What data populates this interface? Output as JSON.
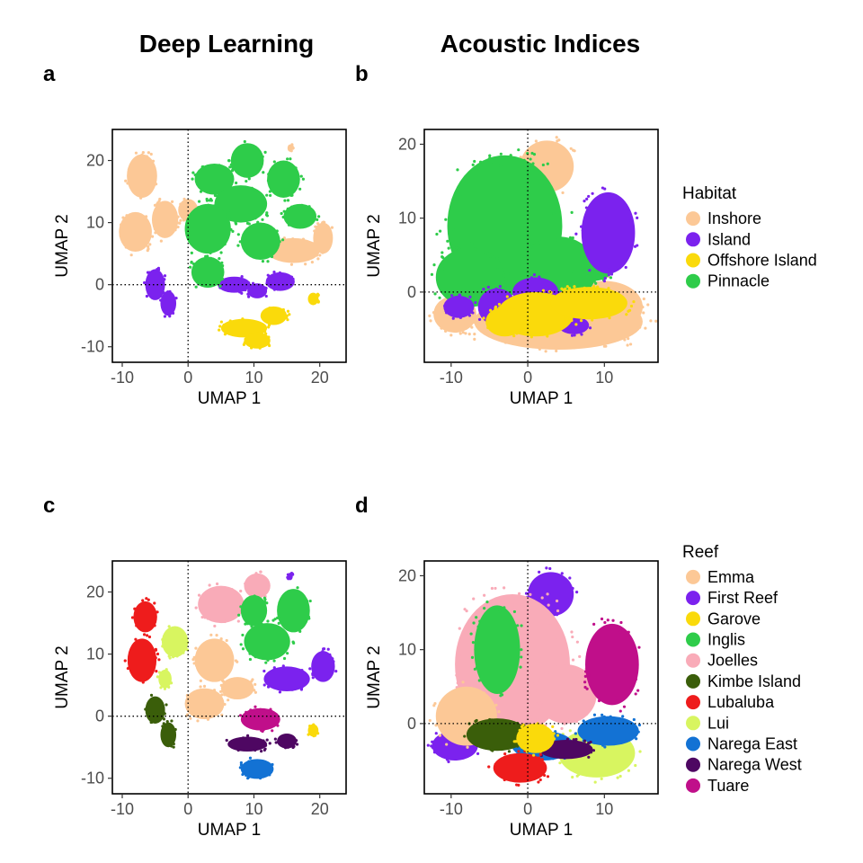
{
  "column_titles": [
    "Deep Learning",
    "Acoustic Indices"
  ],
  "palettes": {
    "habitat": {
      "Inshore": "#fcc896",
      "Island": "#7b22ee",
      "Offshore Island": "#fada0b",
      "Pinnacle": "#2ecc4a"
    },
    "reef": {
      "Emma": "#fcc896",
      "First Reef": "#7b22ee",
      "Garove": "#fada0b",
      "Inglis": "#2ecc4a",
      "Joelles": "#f9abb8",
      "Kimbe Island": "#3a5e0a",
      "Lubaluba": "#ee1c1c",
      "Lui": "#d8f560",
      "Narega East": "#1372d4",
      "Narega West": "#4e0762",
      "Tuare": "#c00f8a"
    }
  },
  "chart_data": [
    {
      "panel": "a",
      "type": "scatter",
      "xlabel": "UMAP 1",
      "ylabel": "UMAP 2",
      "xlim": [
        -11.5,
        24
      ],
      "ylim": [
        -12.5,
        25
      ],
      "xticks": [
        -10,
        0,
        10,
        20
      ],
      "yticks": [
        -10,
        0,
        10,
        20
      ],
      "reference_lines": {
        "x": 0,
        "y": 0
      },
      "legend": null,
      "clusters": [
        {
          "group": "Inshore",
          "x": -7,
          "y": 17.5,
          "rx": 2.3,
          "ry": 3.5
        },
        {
          "group": "Inshore",
          "x": -8,
          "y": 8.5,
          "rx": 2.5,
          "ry": 3.2
        },
        {
          "group": "Inshore",
          "x": -3.5,
          "y": 10.5,
          "rx": 2,
          "ry": 3
        },
        {
          "group": "Inshore",
          "x": 0,
          "y": 12,
          "rx": 1.5,
          "ry": 1.8
        },
        {
          "group": "Inshore",
          "x": 16,
          "y": 5.5,
          "rx": 4,
          "ry": 2
        },
        {
          "group": "Inshore",
          "x": 20.5,
          "y": 7.5,
          "rx": 1.5,
          "ry": 2.5
        },
        {
          "group": "Inshore",
          "x": 15.5,
          "y": 22,
          "rx": 0.4,
          "ry": 0.6
        },
        {
          "group": "Island",
          "x": -5,
          "y": 0,
          "rx": 1.5,
          "ry": 2.5
        },
        {
          "group": "Island",
          "x": -3,
          "y": -3,
          "rx": 1.2,
          "ry": 2
        },
        {
          "group": "Island",
          "x": 7,
          "y": 0,
          "rx": 2.5,
          "ry": 1.3
        },
        {
          "group": "Island",
          "x": 10.5,
          "y": -1,
          "rx": 1.5,
          "ry": 1.2
        },
        {
          "group": "Island",
          "x": 14,
          "y": 0.5,
          "rx": 2.2,
          "ry": 1.5
        },
        {
          "group": "Offshore Island",
          "x": 13,
          "y": -5,
          "rx": 2,
          "ry": 1.5
        },
        {
          "group": "Offshore Island",
          "x": 8.5,
          "y": -7,
          "rx": 3.5,
          "ry": 1.5
        },
        {
          "group": "Offshore Island",
          "x": 10.5,
          "y": -9,
          "rx": 2,
          "ry": 1.3
        },
        {
          "group": "Offshore Island",
          "x": 19,
          "y": -2.3,
          "rx": 0.8,
          "ry": 1
        },
        {
          "group": "Pinnacle",
          "x": 9,
          "y": 20,
          "rx": 2.5,
          "ry": 2.8
        },
        {
          "group": "Pinnacle",
          "x": 14.5,
          "y": 17,
          "rx": 2.5,
          "ry": 3
        },
        {
          "group": "Pinnacle",
          "x": 4,
          "y": 17,
          "rx": 3,
          "ry": 2.5
        },
        {
          "group": "Pinnacle",
          "x": 8,
          "y": 13,
          "rx": 4,
          "ry": 3
        },
        {
          "group": "Pinnacle",
          "x": 3,
          "y": 9,
          "rx": 3.5,
          "ry": 4
        },
        {
          "group": "Pinnacle",
          "x": 11,
          "y": 7,
          "rx": 3,
          "ry": 3
        },
        {
          "group": "Pinnacle",
          "x": 3,
          "y": 2,
          "rx": 2.5,
          "ry": 2.5
        },
        {
          "group": "Pinnacle",
          "x": 17,
          "y": 11,
          "rx": 2.5,
          "ry": 2
        }
      ]
    },
    {
      "panel": "b",
      "type": "scatter",
      "xlabel": "UMAP 1",
      "ylabel": "UMAP 2",
      "xlim": [
        -13.5,
        17
      ],
      "ylim": [
        -9.5,
        22
      ],
      "xticks": [
        -10,
        0,
        10
      ],
      "yticks": [
        0,
        10,
        20
      ],
      "reference_lines": {
        "x": 0,
        "y": 0
      },
      "legend": {
        "title": "Habitat",
        "entries": [
          "Inshore",
          "Island",
          "Offshore Island",
          "Pinnacle"
        ],
        "position": "right"
      },
      "clusters": [
        {
          "group": "Inshore",
          "x": 2.5,
          "y": 17,
          "rx": 3.5,
          "ry": 3.5
        },
        {
          "group": "Inshore",
          "x": -9.5,
          "y": -3,
          "rx": 2.8,
          "ry": 2.5
        },
        {
          "group": "Inshore",
          "x": 4,
          "y": -4,
          "rx": 11,
          "ry": 3.8
        },
        {
          "group": "Inshore",
          "x": 10,
          "y": -2,
          "rx": 5,
          "ry": 3.5
        },
        {
          "group": "Pinnacle",
          "x": -3,
          "y": 9,
          "rx": 7.5,
          "ry": 9.5
        },
        {
          "group": "Pinnacle",
          "x": -7.5,
          "y": 2,
          "rx": 4.5,
          "ry": 4
        },
        {
          "group": "Pinnacle",
          "x": 4,
          "y": 3,
          "rx": 5,
          "ry": 4.5
        },
        {
          "group": "Pinnacle",
          "x": 8.5,
          "y": 3,
          "rx": 2.5,
          "ry": 1.5
        },
        {
          "group": "Island",
          "x": 10.5,
          "y": 8,
          "rx": 3.5,
          "ry": 5.5
        },
        {
          "group": "Island",
          "x": -9,
          "y": -2,
          "rx": 2,
          "ry": 1.5
        },
        {
          "group": "Island",
          "x": -4,
          "y": -2,
          "rx": 2.5,
          "ry": 2.5
        },
        {
          "group": "Island",
          "x": 1,
          "y": 0,
          "rx": 3,
          "ry": 2
        },
        {
          "group": "Island",
          "x": 6,
          "y": -4.5,
          "rx": 2,
          "ry": 1.2
        },
        {
          "group": "Offshore Island",
          "x": 1,
          "y": -3,
          "rx": 5,
          "ry": 3
        },
        {
          "group": "Offshore Island",
          "x": 8,
          "y": -1.5,
          "rx": 5,
          "ry": 2.2
        },
        {
          "group": "Offshore Island",
          "x": -3,
          "y": -4,
          "rx": 2.5,
          "ry": 2
        }
      ]
    },
    {
      "panel": "c",
      "type": "scatter",
      "xlabel": "UMAP 1",
      "ylabel": "UMAP 2",
      "xlim": [
        -11.5,
        24
      ],
      "ylim": [
        -12.5,
        25
      ],
      "xticks": [
        -10,
        0,
        10,
        20
      ],
      "yticks": [
        -10,
        0,
        10,
        20
      ],
      "reference_lines": {
        "x": 0,
        "y": 0
      },
      "legend": null,
      "clusters": [
        {
          "group": "Lubaluba",
          "x": -6.5,
          "y": 16,
          "rx": 1.8,
          "ry": 2.5
        },
        {
          "group": "Lubaluba",
          "x": -7,
          "y": 9,
          "rx": 2.2,
          "ry": 3.5
        },
        {
          "group": "Lui",
          "x": -2,
          "y": 12,
          "rx": 2,
          "ry": 2.5
        },
        {
          "group": "Lui",
          "x": -3.5,
          "y": 6,
          "rx": 1,
          "ry": 1.5
        },
        {
          "group": "Kimbe Island",
          "x": -5,
          "y": 1,
          "rx": 1.5,
          "ry": 2.2
        },
        {
          "group": "Kimbe Island",
          "x": -3,
          "y": -3,
          "rx": 1.2,
          "ry": 2
        },
        {
          "group": "Joelles",
          "x": 5,
          "y": 18,
          "rx": 3.5,
          "ry": 3
        },
        {
          "group": "Joelles",
          "x": 10.5,
          "y": 21,
          "rx": 2,
          "ry": 2
        },
        {
          "group": "Inglis",
          "x": 10,
          "y": 17,
          "rx": 2,
          "ry": 2.5
        },
        {
          "group": "Inglis",
          "x": 16,
          "y": 17,
          "rx": 2.5,
          "ry": 3.5
        },
        {
          "group": "Inglis",
          "x": 12,
          "y": 12,
          "rx": 3.5,
          "ry": 3
        },
        {
          "group": "Emma",
          "x": 4,
          "y": 9,
          "rx": 3,
          "ry": 3.5
        },
        {
          "group": "Emma",
          "x": 2.5,
          "y": 2,
          "rx": 3,
          "ry": 2.5
        },
        {
          "group": "Emma",
          "x": 7.5,
          "y": 4.5,
          "rx": 2.5,
          "ry": 1.8
        },
        {
          "group": "First Reef",
          "x": 15,
          "y": 6,
          "rx": 3.5,
          "ry": 2
        },
        {
          "group": "First Reef",
          "x": 20.5,
          "y": 8,
          "rx": 1.8,
          "ry": 2.5
        },
        {
          "group": "First Reef",
          "x": 15.5,
          "y": 22.5,
          "rx": 0.4,
          "ry": 0.6
        },
        {
          "group": "Tuare",
          "x": 11,
          "y": -0.5,
          "rx": 3,
          "ry": 1.8
        },
        {
          "group": "Narega West",
          "x": 9,
          "y": -4.5,
          "rx": 3,
          "ry": 1.2
        },
        {
          "group": "Narega West",
          "x": 15,
          "y": -4,
          "rx": 1.5,
          "ry": 1.2
        },
        {
          "group": "Narega East",
          "x": 10.5,
          "y": -8.5,
          "rx": 2.5,
          "ry": 1.6
        },
        {
          "group": "Garove",
          "x": 19,
          "y": -2.3,
          "rx": 0.8,
          "ry": 1
        }
      ]
    },
    {
      "panel": "d",
      "type": "scatter",
      "xlabel": "UMAP 1",
      "ylabel": "UMAP 2",
      "xlim": [
        -13.5,
        17
      ],
      "ylim": [
        -9.5,
        22
      ],
      "xticks": [
        -10,
        0,
        10
      ],
      "yticks": [
        0,
        10,
        20
      ],
      "reference_lines": {
        "x": 0,
        "y": 0
      },
      "legend": {
        "title": "Reef",
        "entries": [
          "Emma",
          "First Reef",
          "Garove",
          "Inglis",
          "Joelles",
          "Kimbe Island",
          "Lubaluba",
          "Lui",
          "Narega East",
          "Narega West",
          "Tuare"
        ],
        "position": "right"
      },
      "clusters": [
        {
          "group": "First Reef",
          "x": 3,
          "y": 17.5,
          "rx": 3,
          "ry": 3
        },
        {
          "group": "First Reef",
          "x": -9.5,
          "y": -3,
          "rx": 3,
          "ry": 2
        },
        {
          "group": "Joelles",
          "x": -2,
          "y": 8,
          "rx": 7.5,
          "ry": 9.5
        },
        {
          "group": "Joelles",
          "x": 5,
          "y": 4,
          "rx": 4,
          "ry": 4
        },
        {
          "group": "Inglis",
          "x": -4,
          "y": 10,
          "rx": 3,
          "ry": 6
        },
        {
          "group": "Emma",
          "x": -8,
          "y": 1,
          "rx": 4,
          "ry": 4
        },
        {
          "group": "Tuare",
          "x": 11,
          "y": 8,
          "rx": 3.5,
          "ry": 5.5
        },
        {
          "group": "Lui",
          "x": 9,
          "y": -4,
          "rx": 5,
          "ry": 3.3
        },
        {
          "group": "Narega East",
          "x": 10.5,
          "y": -1,
          "rx": 4,
          "ry": 2
        },
        {
          "group": "Narega East",
          "x": 2,
          "y": -3,
          "rx": 4,
          "ry": 2
        },
        {
          "group": "Narega West",
          "x": 5,
          "y": -3.5,
          "rx": 3.5,
          "ry": 1.3
        },
        {
          "group": "Kimbe Island",
          "x": -4,
          "y": -1.5,
          "rx": 4,
          "ry": 2.2
        },
        {
          "group": "Lubaluba",
          "x": -1,
          "y": -6,
          "rx": 3.5,
          "ry": 2
        },
        {
          "group": "Garove",
          "x": 1,
          "y": -2,
          "rx": 2.5,
          "ry": 2
        }
      ]
    }
  ]
}
